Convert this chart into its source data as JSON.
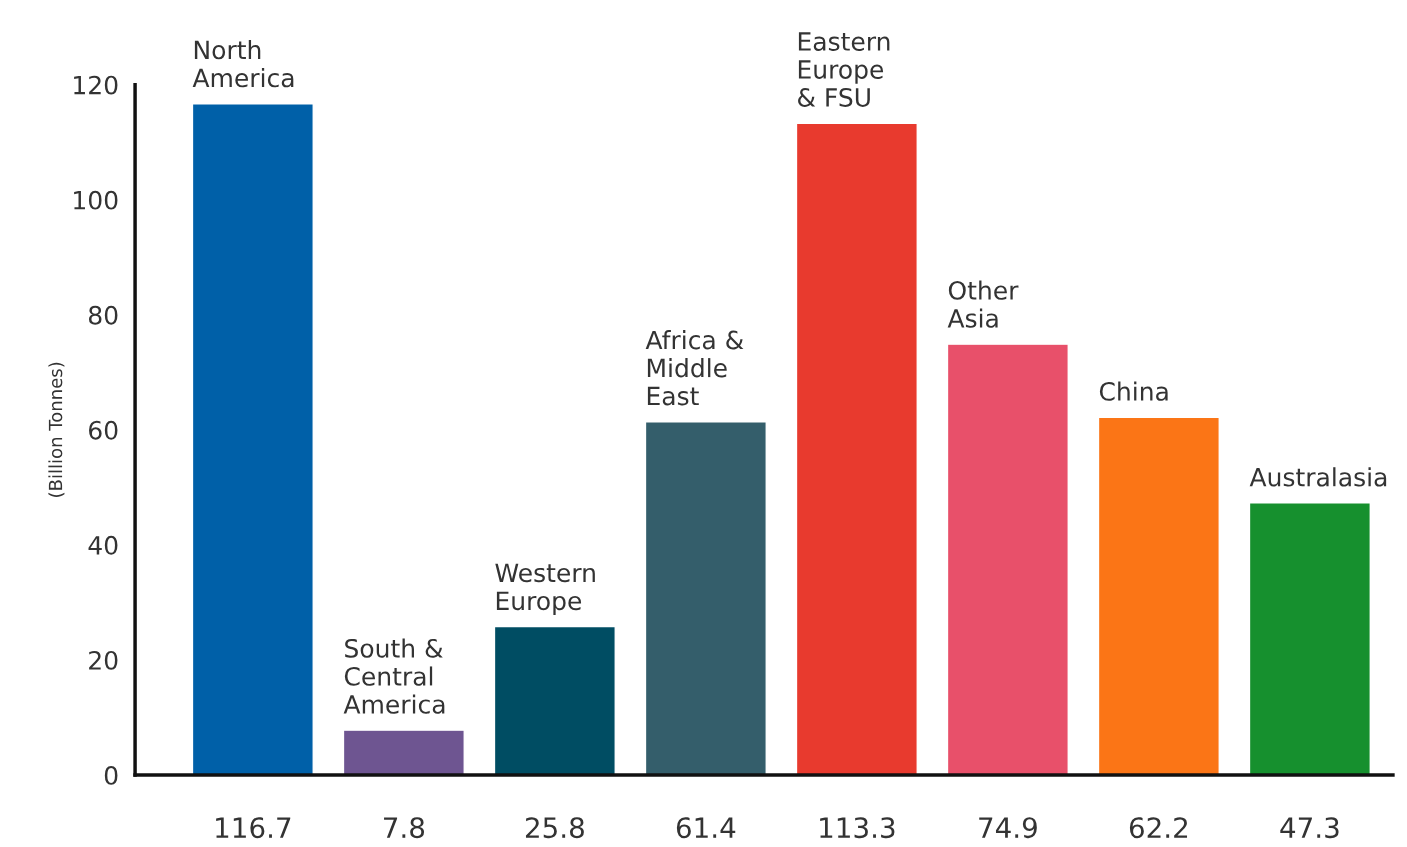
{
  "chart_data": {
    "type": "bar",
    "ylabel": "(Billion Tonnes)",
    "categories": [
      "North\nAmerica",
      "South &\nCentral\nAmerica",
      "Western\nEurope",
      "Africa &\nMiddle\nEast",
      "Eastern\nEurope\n& FSU",
      "Other\nAsia",
      "China",
      "Australasia"
    ],
    "values": [
      116.7,
      7.8,
      25.8,
      61.4,
      113.3,
      74.9,
      62.2,
      47.3
    ],
    "colors": [
      "#0060a8",
      "#6e5591",
      "#004d63",
      "#345e6b",
      "#e83a2e",
      "#e8506a",
      "#fb7516",
      "#16902e"
    ],
    "ylim": [
      0,
      120
    ],
    "yticks": [
      0,
      20,
      40,
      60,
      80,
      100,
      120
    ],
    "grid": false,
    "data_labels": true
  }
}
